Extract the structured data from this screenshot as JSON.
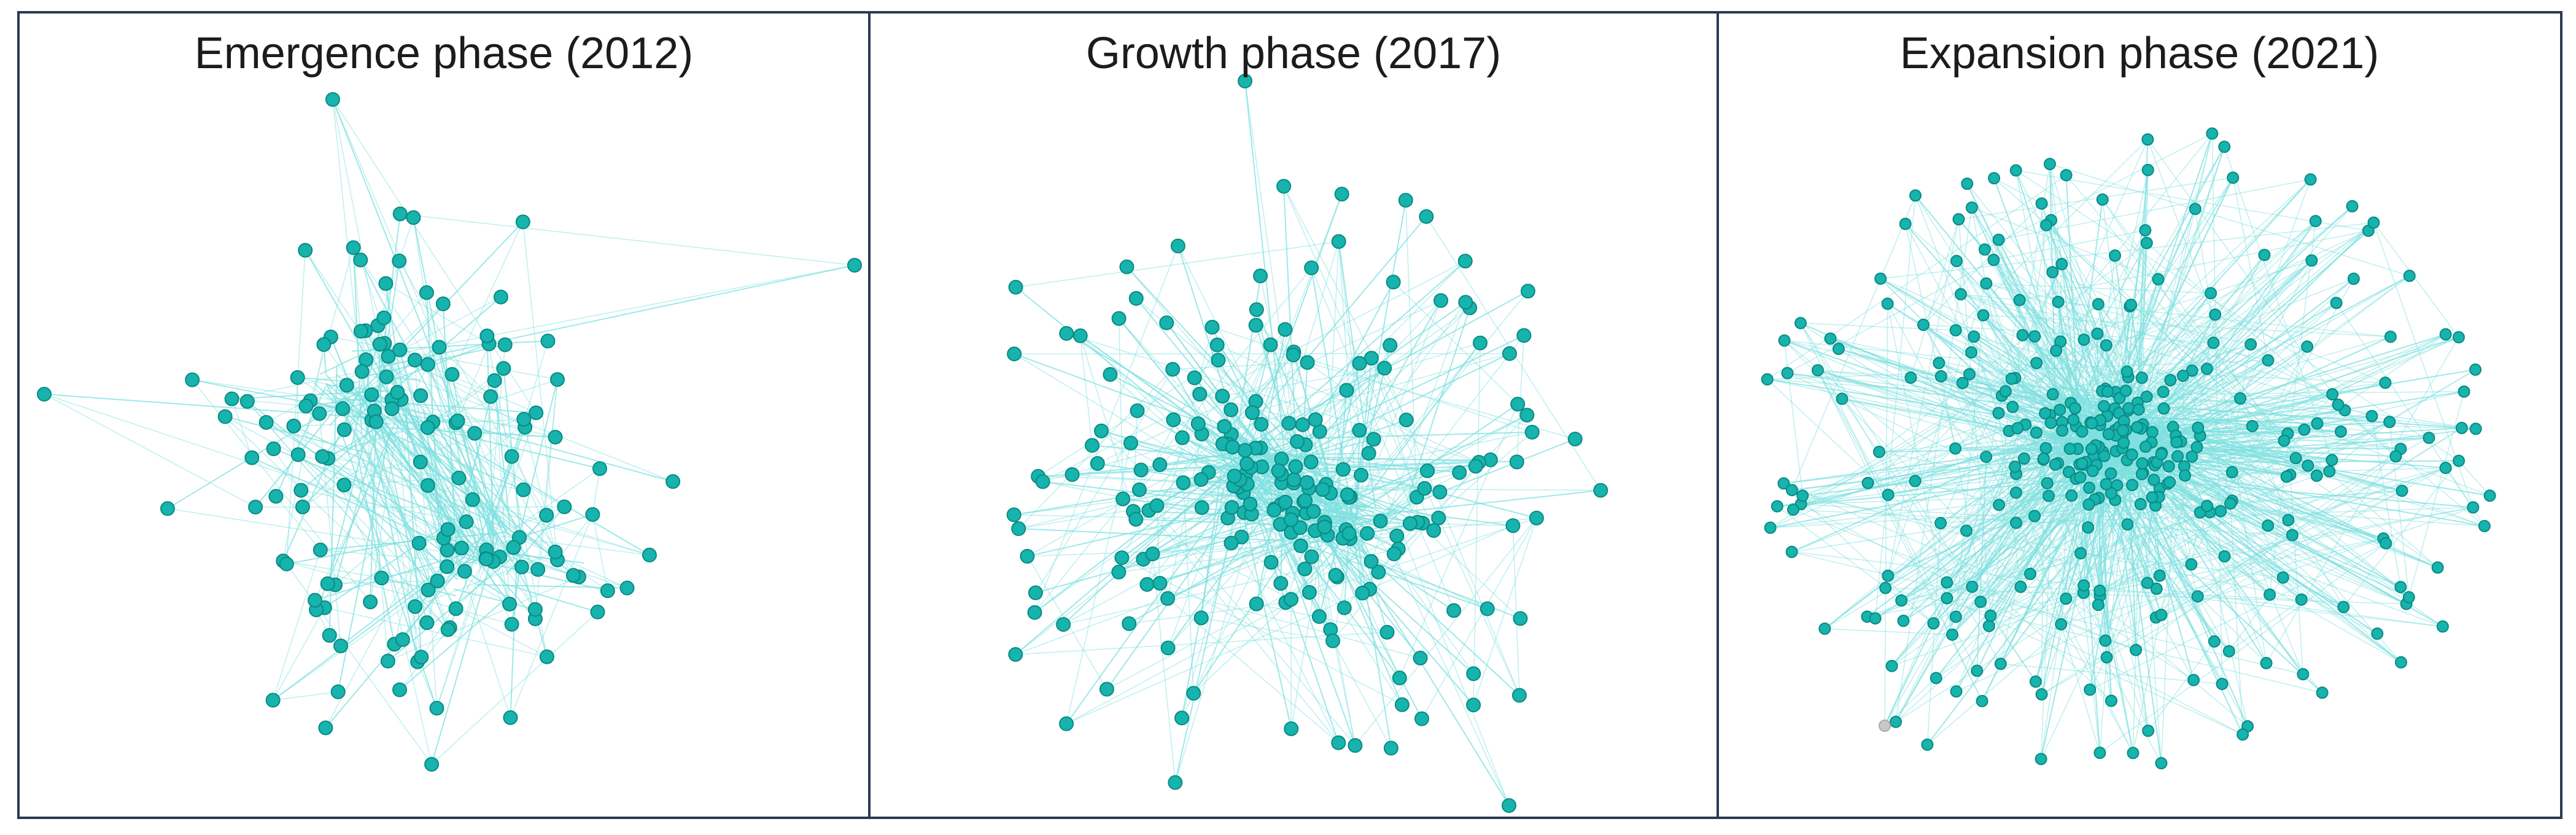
{
  "figure": {
    "panels": [
      {
        "title": "Emergence phase (2012)",
        "network": {
          "node_count": 150,
          "hub_count": 2,
          "spread": "sparse",
          "seed": 7
        }
      },
      {
        "title": "Growth phase (2017)",
        "network": {
          "node_count": 230,
          "hub_count": 2,
          "spread": "medium",
          "seed": 19
        }
      },
      {
        "title": "Expansion phase (2021)",
        "network": {
          "node_count": 360,
          "hub_count": 1,
          "spread": "dense",
          "seed": 41
        }
      }
    ],
    "colors": {
      "node_fill": "#17b3ad",
      "node_stroke": "#0a8a84",
      "edge": "#7fe0e0",
      "border": "#2b3a52",
      "isolate_node": "#c8c8c8"
    }
  }
}
